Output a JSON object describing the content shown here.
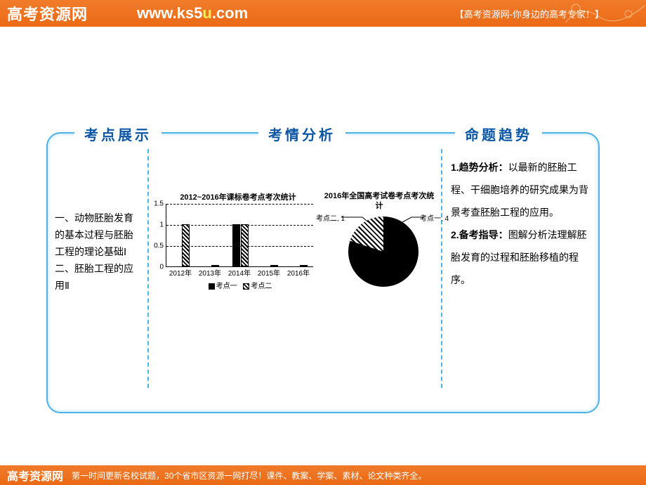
{
  "banner": {
    "logo_cn": "高考资源网",
    "url_pre": "www.ks5",
    "url_hi": "u",
    "url_post": ".com",
    "slogan": "【高考资源网-你身边的高考专家！】",
    "bottom_text": "第一时间更新名校试题，30个省市区资源一网打尽！课件、教案、学案、素材、论文种类齐全。"
  },
  "headers": {
    "left": "考点展示",
    "mid": "考情分析",
    "right": "命题趋势"
  },
  "left_col": "一、动物胚胎发育的基本过程与胚胎工程的理论基础Ⅰ 二、胚胎工程的应用Ⅱ",
  "right_col_1_b": "1.趋势分析：",
  "right_col_1": "以最新的胚胎工程、干细胞培养的研究成果为背景考查胚胎工程的应用。",
  "right_col_2_b": "2.备考指导：",
  "right_col_2": "图解分析法理解胚胎发育的过程和胚胎移植的程序。",
  "bar": {
    "title": "2012~2016年课标卷考点考次统计",
    "ylim": [
      0,
      1.5
    ],
    "yticks": [
      0,
      0.5,
      1,
      1.5
    ],
    "categories": [
      "2012年",
      "2013年",
      "2014年",
      "2015年",
      "2016年"
    ],
    "series1": [
      0,
      0,
      1,
      0,
      0
    ],
    "series2": [
      1,
      0,
      1,
      0,
      0
    ],
    "legend1": "考点一",
    "legend2": "考点二",
    "colors": {
      "solid": "#000000",
      "hatch_fg": "#000000",
      "hatch_bg": "#ffffff"
    }
  },
  "pie": {
    "title": "2016年全国高考试卷考点考次统计",
    "slices": [
      {
        "label": "考点二, 1",
        "value": 1,
        "fill": "hatch"
      },
      {
        "label": "考点一, 4",
        "value": 4,
        "fill": "solid"
      }
    ],
    "colors": {
      "solid": "#000000"
    }
  },
  "style": {
    "frame_border": "#4db2e6",
    "header_color": "#0b57a6",
    "banner_bg": "#ec6c17"
  }
}
